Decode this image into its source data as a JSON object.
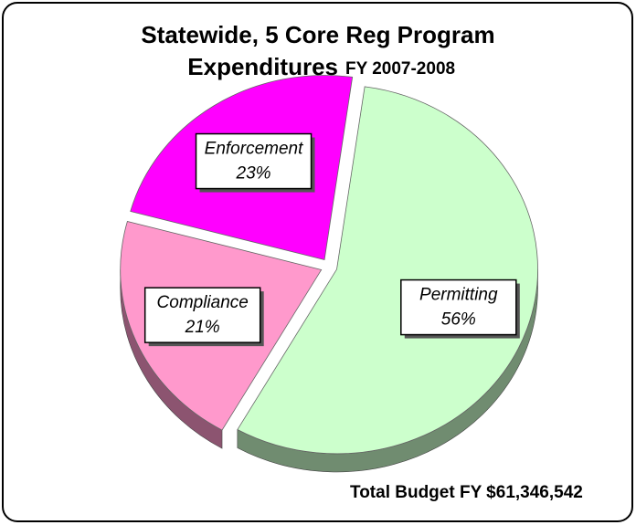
{
  "chart_data": {
    "type": "pie",
    "title": "Statewide, 5 Core Reg Program",
    "subtitle": "Expenditures",
    "subtitle_note": "FY 2007-2008",
    "categories": [
      "Permitting",
      "Compliance",
      "Enforcement"
    ],
    "values": [
      56,
      21,
      23
    ],
    "value_labels": [
      "56%",
      "21%",
      "23%"
    ],
    "colors": [
      "#ccffcc",
      "#ff99cc",
      "#ff00ff"
    ],
    "annotation": "Total  Budget FY $61,346,542"
  }
}
